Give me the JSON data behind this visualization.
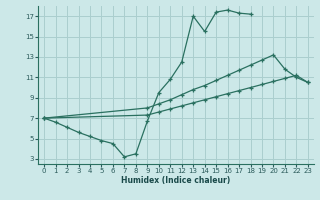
{
  "xlabel": "Humidex (Indice chaleur)",
  "bg_color": "#cce8e8",
  "grid_color": "#aacece",
  "line_color": "#2a7060",
  "xlim": [
    -0.5,
    23.5
  ],
  "ylim": [
    2.5,
    18.0
  ],
  "xticks": [
    0,
    1,
    2,
    3,
    4,
    5,
    6,
    7,
    8,
    9,
    10,
    11,
    12,
    13,
    14,
    15,
    16,
    17,
    18,
    19,
    20,
    21,
    22,
    23
  ],
  "yticks": [
    3,
    5,
    7,
    9,
    11,
    13,
    15,
    17
  ],
  "line1_x": [
    0,
    1,
    2,
    3,
    4,
    5,
    6,
    7,
    8,
    9,
    10,
    11,
    12,
    13,
    14,
    15,
    16,
    17,
    18
  ],
  "line1_y": [
    7.0,
    6.6,
    6.1,
    5.6,
    5.2,
    4.8,
    4.5,
    3.2,
    3.5,
    6.7,
    9.5,
    10.8,
    12.5,
    17.0,
    15.5,
    17.4,
    17.6,
    17.3,
    17.2
  ],
  "line2_x": [
    0,
    9,
    10,
    11,
    12,
    13,
    14,
    15,
    16,
    17,
    18,
    19,
    20,
    21,
    22,
    23
  ],
  "line2_y": [
    7.0,
    8.0,
    8.4,
    8.8,
    9.3,
    9.8,
    10.2,
    10.7,
    11.2,
    11.7,
    12.2,
    12.7,
    13.2,
    11.8,
    11.0,
    10.5
  ],
  "line3_x": [
    0,
    9,
    10,
    11,
    12,
    13,
    14,
    15,
    16,
    17,
    18,
    19,
    20,
    21,
    22,
    23
  ],
  "line3_y": [
    7.0,
    7.3,
    7.6,
    7.9,
    8.2,
    8.5,
    8.8,
    9.1,
    9.4,
    9.7,
    10.0,
    10.3,
    10.6,
    10.9,
    11.2,
    10.5
  ]
}
